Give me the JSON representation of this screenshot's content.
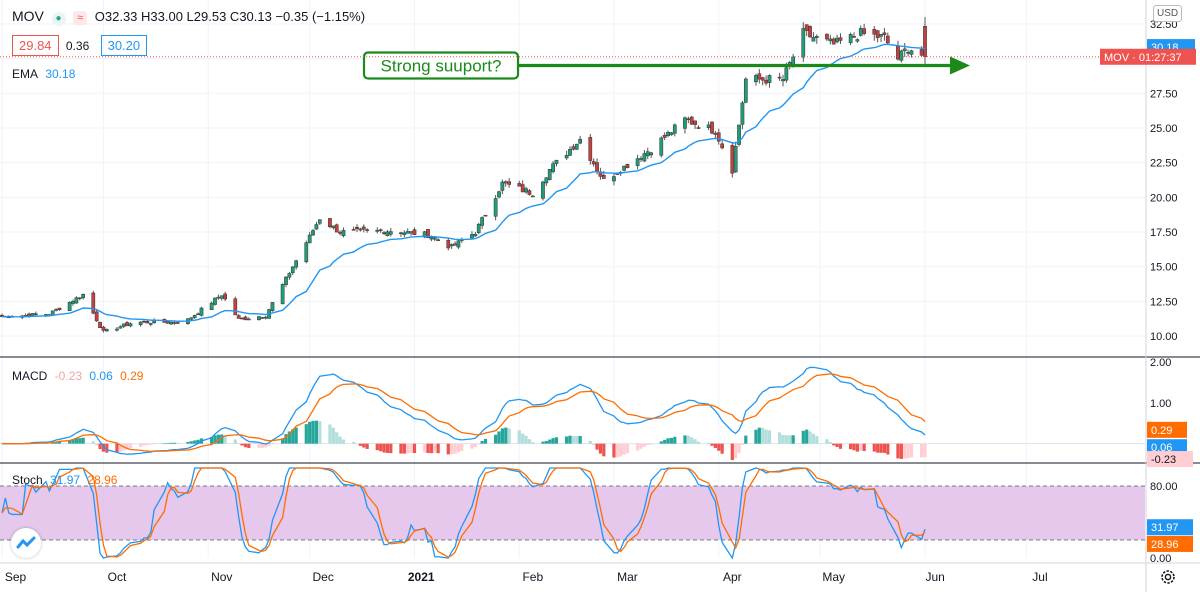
{
  "colors": {
    "up": "#26a69a",
    "up_body": "#1e9d78",
    "down": "#ef5350",
    "down_body": "#c5403d",
    "ema": "#2196f3",
    "macd_line": "#2196f3",
    "signal_line": "#ff6d00",
    "stoch_k": "#2196f3",
    "stoch_d": "#ff6d00",
    "stoch_band": "#e1bee7",
    "annotation": "#1b8a1b",
    "grid": "#f0f3fa"
  },
  "header": {
    "symbol": "MOV",
    "ohlc_text": "O32.33 H33.00 L29.53 C30.13 −0.35 (−1.15%)",
    "bid": "29.84",
    "spread": "0.36",
    "ask": "30.20",
    "ema_label": "EMA",
    "ema_value": "30.18",
    "macd_label": "MACD",
    "macd_hist": "-0.23",
    "macd_value": "0.06",
    "signal_value": "0.29",
    "stoch_label": "Stoch",
    "stoch_k": "31.97",
    "stoch_d": "28.96"
  },
  "annotation": {
    "text": "Strong  suuport?"
  },
  "right_axis": {
    "currency": "USD",
    "price_ticks": [
      "32.50",
      "27.50",
      "25.00",
      "22.50",
      "20.00",
      "17.50",
      "15.00",
      "12.50",
      "10.00"
    ],
    "last_ema_tag": "30.18",
    "last_price_tag": "MOV · 01:27:37",
    "macd_ticks": [
      "2.00",
      "1.00"
    ],
    "macd_tags": [
      "0.29",
      "0.06",
      "-0.23"
    ],
    "stoch_ticks": [
      "80.00",
      "20.00",
      "0.00"
    ],
    "stoch_tags": [
      "31.97",
      "28.96"
    ]
  },
  "time_axis": {
    "labels": [
      "Sep",
      "Oct",
      "Nov",
      "Dec",
      "2021",
      "Feb",
      "Mar",
      "Apr",
      "May",
      "Jun",
      "Jul"
    ]
  },
  "chart_data": {
    "type": "candlestick",
    "symbol": "MOV",
    "x_range": [
      "2020-09-01",
      "2021-07-31"
    ],
    "price_ylim": [
      9,
      33.5
    ],
    "price_anchors": [
      {
        "date": "2020-09-01",
        "close": 11.4
      },
      {
        "date": "2020-09-15",
        "close": 11.6
      },
      {
        "date": "2020-09-25",
        "close": 13.0
      },
      {
        "date": "2020-10-01",
        "close": 10.3
      },
      {
        "date": "2020-10-10",
        "close": 11.0
      },
      {
        "date": "2020-10-25",
        "close": 11.0
      },
      {
        "date": "2020-11-05",
        "close": 13.0
      },
      {
        "date": "2020-11-10",
        "close": 11.2
      },
      {
        "date": "2020-11-18",
        "close": 11.5
      },
      {
        "date": "2020-12-04",
        "close": 18.5
      },
      {
        "date": "2020-12-10",
        "close": 17.5
      },
      {
        "date": "2020-12-25",
        "close": 17.6
      },
      {
        "date": "2021-01-05",
        "close": 17.3
      },
      {
        "date": "2021-01-12",
        "close": 16.4
      },
      {
        "date": "2021-01-19",
        "close": 17.5
      },
      {
        "date": "2021-01-27",
        "close": 21.0
      },
      {
        "date": "2021-02-05",
        "close": 20.3
      },
      {
        "date": "2021-02-10",
        "close": 22.0
      },
      {
        "date": "2021-02-19",
        "close": 24.2
      },
      {
        "date": "2021-02-26",
        "close": 21.2
      },
      {
        "date": "2021-03-12",
        "close": 23.5
      },
      {
        "date": "2021-03-22",
        "close": 25.6
      },
      {
        "date": "2021-03-31",
        "close": 24.8
      },
      {
        "date": "2021-04-05",
        "close": 22.0
      },
      {
        "date": "2021-04-09",
        "close": 28.5
      },
      {
        "date": "2021-04-20",
        "close": 28.5
      },
      {
        "date": "2021-04-26",
        "close": 31.8
      },
      {
        "date": "2021-05-05",
        "close": 31.0
      },
      {
        "date": "2021-05-13",
        "close": 31.8
      },
      {
        "date": "2021-05-20",
        "close": 31.5
      },
      {
        "date": "2021-05-24",
        "close": 30.0
      },
      {
        "date": "2021-05-27",
        "close": 30.8
      },
      {
        "date": "2021-06-01",
        "close": 30.13
      }
    ],
    "last_ohlc": {
      "open": 32.33,
      "high": 33.0,
      "low": 29.53,
      "close": 30.13
    },
    "ema_last": 30.18,
    "macd": {
      "macd_last": 0.06,
      "signal_last": 0.29,
      "hist_last": -0.23,
      "ylim": [
        -0.4,
        2.0
      ]
    },
    "stochastic": {
      "k_last": 31.97,
      "d_last": 28.96,
      "upper_band": 80,
      "lower_band": 20,
      "ylim": [
        0,
        100
      ]
    },
    "annotation_arrow_level": 29.5
  }
}
